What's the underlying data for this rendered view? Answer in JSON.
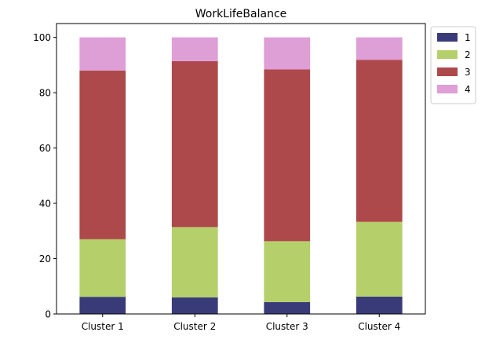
{
  "chart_data": {
    "type": "bar",
    "stacked": true,
    "title": "WorkLifeBalance",
    "xlabel": "",
    "ylabel": "",
    "ylim": [
      0,
      105
    ],
    "yticks": [
      "0",
      "20",
      "40",
      "60",
      "80",
      "100"
    ],
    "categories": [
      "Cluster 1",
      "Cluster 2",
      "Cluster 3",
      "Cluster 4"
    ],
    "grid": false,
    "legend_position": "outside-top-right",
    "series": [
      {
        "name": "1",
        "color": "#393b79",
        "values": [
          6.2,
          6.0,
          4.3,
          6.3
        ]
      },
      {
        "name": "2",
        "color": "#b5cf6b",
        "values": [
          20.8,
          25.4,
          22.0,
          27.0
        ]
      },
      {
        "name": "3",
        "color": "#ad494a",
        "values": [
          61.0,
          60.0,
          62.1,
          58.6
        ]
      },
      {
        "name": "4",
        "color": "#de9ed6",
        "values": [
          12.0,
          8.6,
          11.6,
          8.1
        ]
      }
    ]
  }
}
